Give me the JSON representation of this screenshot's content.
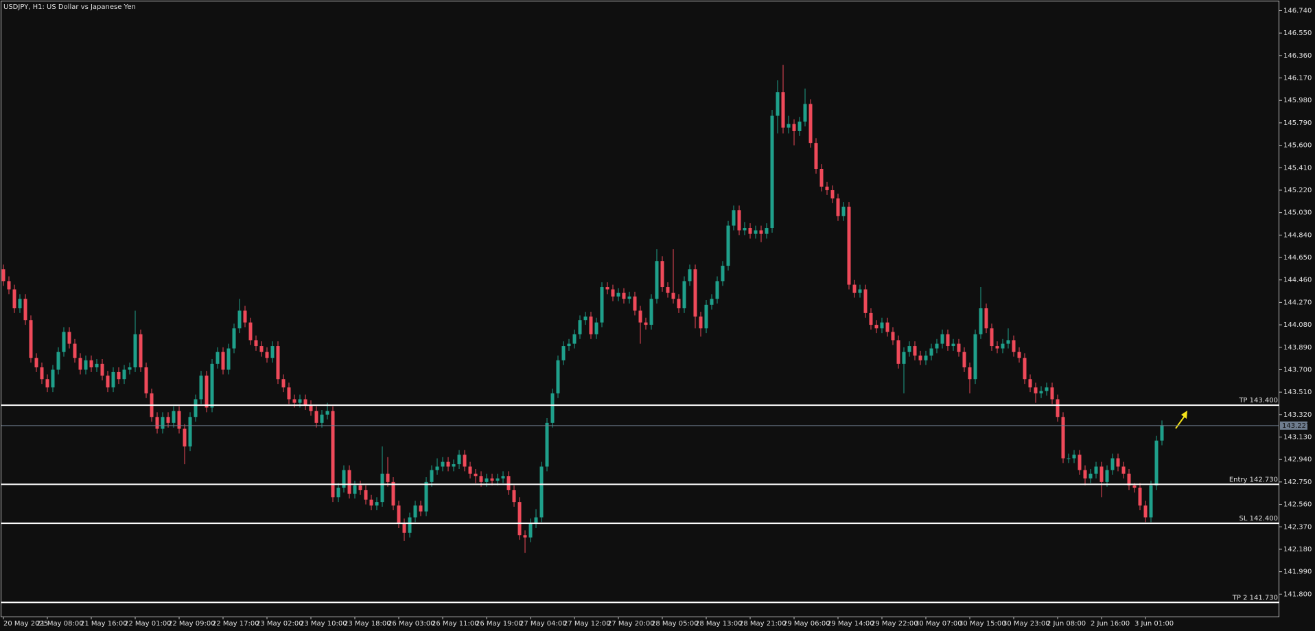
{
  "chart_data": {
    "type": "candlestick",
    "title": "USDJPY, H1:  US Dollar vs Japanese Yen",
    "up_color": "#1fa08b",
    "down_color": "#ef4a5a",
    "categories": [
      "20 May 2025",
      null,
      null,
      null,
      null,
      null,
      null,
      null,
      "21 May 08:00",
      null,
      null,
      null,
      null,
      null,
      null,
      null,
      "21 May 16:00",
      null,
      null,
      null,
      null,
      null,
      null,
      null,
      "22 May 01:00",
      null,
      null,
      null,
      null,
      null,
      null,
      null,
      "22 May 09:00",
      null,
      null,
      null,
      null,
      null,
      null,
      null,
      "22 May 17:00",
      null,
      null,
      null,
      null,
      null,
      null,
      null,
      "23 May 02:00",
      null,
      null,
      null,
      null,
      null,
      null,
      null,
      "23 May 10:00",
      null,
      null,
      null,
      null,
      null,
      null,
      null,
      "23 May 18:00",
      null,
      null,
      null,
      null,
      null,
      null,
      null,
      "26 May 03:00",
      null,
      null,
      null,
      null,
      null,
      null,
      null,
      "26 May 11:00",
      null,
      null,
      null,
      null,
      null,
      null,
      null,
      "26 May 19:00",
      null,
      null,
      null,
      null,
      null,
      null,
      null,
      "27 May 04:00",
      null,
      null,
      null,
      null,
      null,
      null,
      null,
      "27 May 12:00",
      null,
      null,
      null,
      null,
      null,
      null,
      null,
      "27 May 20:00",
      null,
      null,
      null,
      null,
      null,
      null,
      null,
      "28 May 05:00",
      null,
      null,
      null,
      null,
      null,
      null,
      null,
      "28 May 13:00",
      null,
      null,
      null,
      null,
      null,
      null,
      null,
      "28 May 21:00",
      null,
      null,
      null,
      null,
      null,
      null,
      null,
      "29 May 06:00",
      null,
      null,
      null,
      null,
      null,
      null,
      null,
      "29 May 14:00",
      null,
      null,
      null,
      null,
      null,
      null,
      null,
      "29 May 22:00",
      null,
      null,
      null,
      null,
      null,
      null,
      null,
      "30 May 07:00",
      null,
      null,
      null,
      null,
      null,
      null,
      null,
      "30 May 15:00",
      null,
      null,
      null,
      null,
      null,
      null,
      null,
      "30 May 23:00",
      null,
      null,
      null,
      null,
      null,
      null,
      null,
      "2 Jun 08:00",
      null,
      null,
      null,
      null,
      null,
      null,
      null,
      "2 Jun 16:00",
      null,
      null,
      null,
      null,
      null,
      null,
      null,
      "3 Jun 01:00",
      null,
      null,
      null
    ],
    "open": [
      144.55,
      144.45,
      144.38,
      144.22,
      144.3,
      144.12,
      143.8,
      143.72,
      143.62,
      143.55,
      143.7,
      143.85,
      144.02,
      143.92,
      143.8,
      143.7,
      143.78,
      143.72,
      143.75,
      143.65,
      143.55,
      143.68,
      143.62,
      143.7,
      143.72,
      144.0,
      143.72,
      143.5,
      143.3,
      143.2,
      143.3,
      143.25,
      143.35,
      143.2,
      143.05,
      143.3,
      143.45,
      143.65,
      143.38,
      143.75,
      143.85,
      143.7,
      143.88,
      144.05,
      144.2,
      144.1,
      143.95,
      143.9,
      143.85,
      143.8,
      143.9,
      143.62,
      143.55,
      143.45,
      143.42,
      143.45,
      143.4,
      143.35,
      143.25,
      143.32,
      143.35,
      142.62,
      142.7,
      142.85,
      142.65,
      142.72,
      142.68,
      142.6,
      142.55,
      142.58,
      142.82,
      142.75,
      142.55,
      142.4,
      142.32,
      142.45,
      142.55,
      142.5,
      142.75,
      142.85,
      142.88,
      142.92,
      142.88,
      142.9,
      142.98,
      142.88,
      142.82,
      142.8,
      142.75,
      142.78,
      142.76,
      142.78,
      142.8,
      142.68,
      142.58,
      142.3,
      142.28,
      142.4,
      142.45,
      142.88,
      143.25,
      143.5,
      143.78,
      143.9,
      143.92,
      144.0,
      144.12,
      144.15,
      144.0,
      144.1,
      144.4,
      144.38,
      144.32,
      144.35,
      144.3,
      144.32,
      144.2,
      144.1,
      144.08,
      144.3,
      144.62,
      144.4,
      144.35,
      144.3,
      144.22,
      144.45,
      144.55,
      144.15,
      144.05,
      144.25,
      144.3,
      144.45,
      144.58,
      144.92,
      145.05,
      144.88,
      144.9,
      144.85,
      144.88,
      144.85,
      144.9,
      145.85,
      146.05,
      145.75,
      145.78,
      145.72,
      145.8,
      145.95,
      145.62,
      145.4,
      145.25,
      145.22,
      145.15,
      145.0,
      145.08,
      144.42,
      144.35,
      144.38,
      144.18,
      144.08,
      144.05,
      144.1,
      144.02,
      143.95,
      143.75,
      143.85,
      143.9,
      143.82,
      143.78,
      143.82,
      143.88,
      143.92,
      144.0,
      143.9,
      143.92,
      143.85,
      143.72,
      143.62,
      144.0,
      144.22,
      144.05,
      143.9,
      143.88,
      143.92,
      143.95,
      143.85,
      143.8,
      143.62,
      143.55,
      143.5,
      143.52,
      143.55,
      143.45,
      143.3,
      142.95,
      142.95,
      142.98,
      142.85,
      142.78,
      142.82,
      142.88,
      142.75,
      142.85,
      142.95,
      142.88,
      142.82,
      142.72,
      142.7,
      142.55,
      142.45,
      142.72,
      143.1
    ],
    "high": [
      144.59,
      144.49,
      144.42,
      144.34,
      144.34,
      144.16,
      143.84,
      143.76,
      143.66,
      143.74,
      143.89,
      144.06,
      144.06,
      143.96,
      143.84,
      143.82,
      143.82,
      143.79,
      143.79,
      143.69,
      143.72,
      143.72,
      143.74,
      143.76,
      144.2,
      144.04,
      143.76,
      143.54,
      143.34,
      143.34,
      143.34,
      143.39,
      143.39,
      143.24,
      143.34,
      143.49,
      143.69,
      143.69,
      143.79,
      143.89,
      143.89,
      143.92,
      144.09,
      144.3,
      144.24,
      144.14,
      143.99,
      143.94,
      143.89,
      143.94,
      143.94,
      143.66,
      143.59,
      143.49,
      143.49,
      143.49,
      143.44,
      143.39,
      143.36,
      143.42,
      143.39,
      142.74,
      142.89,
      142.89,
      142.76,
      142.76,
      142.72,
      142.64,
      142.62,
      143.05,
      142.96,
      142.79,
      142.59,
      142.44,
      142.49,
      142.59,
      142.59,
      142.79,
      142.89,
      142.95,
      142.96,
      142.96,
      142.94,
      143.02,
      143.02,
      142.92,
      142.86,
      142.84,
      142.82,
      142.82,
      142.82,
      142.84,
      142.84,
      142.72,
      142.62,
      142.34,
      142.44,
      142.52,
      142.92,
      143.29,
      143.54,
      143.82,
      143.94,
      143.96,
      144.04,
      144.16,
      144.19,
      144.19,
      144.14,
      144.44,
      144.44,
      144.42,
      144.39,
      144.39,
      144.36,
      144.36,
      144.24,
      144.14,
      144.34,
      144.72,
      144.66,
      144.44,
      144.72,
      144.34,
      144.49,
      144.59,
      144.59,
      144.19,
      144.29,
      144.34,
      144.49,
      144.62,
      144.96,
      145.09,
      145.09,
      144.95,
      144.94,
      144.92,
      144.92,
      144.94,
      145.9,
      146.15,
      146.28,
      145.85,
      145.82,
      145.84,
      146.08,
      145.99,
      145.66,
      145.44,
      145.29,
      145.26,
      145.19,
      145.12,
      145.12,
      144.46,
      144.42,
      144.42,
      144.22,
      144.12,
      144.14,
      144.14,
      144.06,
      143.99,
      143.89,
      143.94,
      143.94,
      143.86,
      143.86,
      143.92,
      143.96,
      144.04,
      144.04,
      143.96,
      143.96,
      143.89,
      143.76,
      144.04,
      144.4,
      144.26,
      144.09,
      143.94,
      143.96,
      144.05,
      143.99,
      143.89,
      143.84,
      143.66,
      143.59,
      143.56,
      143.59,
      143.59,
      143.49,
      143.34,
      142.99,
      143.02,
      143.02,
      142.89,
      142.86,
      142.92,
      142.92,
      142.89,
      142.99,
      142.99,
      142.92,
      142.86,
      142.74,
      142.74,
      142.59,
      142.76,
      143.14,
      143.27
    ],
    "low": [
      144.41,
      144.34,
      144.18,
      144.18,
      144.08,
      143.76,
      143.68,
      143.58,
      143.51,
      143.51,
      143.66,
      143.81,
      143.88,
      143.76,
      143.66,
      143.66,
      143.68,
      143.68,
      143.61,
      143.51,
      143.51,
      143.58,
      143.58,
      143.66,
      143.68,
      143.68,
      143.46,
      143.26,
      143.16,
      143.16,
      143.21,
      143.21,
      143.16,
      142.9,
      143.01,
      143.26,
      143.41,
      143.34,
      143.34,
      143.71,
      143.66,
      143.66,
      143.84,
      144.01,
      144.06,
      143.91,
      143.86,
      143.81,
      143.76,
      143.76,
      143.58,
      143.51,
      143.41,
      143.38,
      143.38,
      143.36,
      143.31,
      143.21,
      143.21,
      143.28,
      142.58,
      142.58,
      142.66,
      142.61,
      142.61,
      142.64,
      142.56,
      142.51,
      142.51,
      142.54,
      142.71,
      142.51,
      142.36,
      142.25,
      142.28,
      142.41,
      142.46,
      142.46,
      142.71,
      142.81,
      142.84,
      142.84,
      142.84,
      142.86,
      142.84,
      142.78,
      142.74,
      142.71,
      142.71,
      142.72,
      142.72,
      142.74,
      142.64,
      142.54,
      142.26,
      142.15,
      142.24,
      142.36,
      142.41,
      142.84,
      143.21,
      143.46,
      143.74,
      143.86,
      143.88,
      143.96,
      144.08,
      143.96,
      143.96,
      144.06,
      144.34,
      144.28,
      144.28,
      144.26,
      144.26,
      144.16,
      143.92,
      144.04,
      144.04,
      144.26,
      144.36,
      144.31,
      144.26,
      144.18,
      144.18,
      144.41,
      144.05,
      143.98,
      144.01,
      144.21,
      144.26,
      144.41,
      144.54,
      144.88,
      144.84,
      144.84,
      144.81,
      144.81,
      144.78,
      144.81,
      144.86,
      145.7,
      145.7,
      145.7,
      145.6,
      145.68,
      145.76,
      145.58,
      145.36,
      145.21,
      145.18,
      145.11,
      144.96,
      144.96,
      144.38,
      144.31,
      144.31,
      144.14,
      144.04,
      144.01,
      144.01,
      143.98,
      143.91,
      143.71,
      143.5,
      143.81,
      143.78,
      143.74,
      143.74,
      143.78,
      143.84,
      143.88,
      143.86,
      143.86,
      143.81,
      143.68,
      143.5,
      143.58,
      143.96,
      144.01,
      143.86,
      143.84,
      143.84,
      143.88,
      143.81,
      143.76,
      143.58,
      143.51,
      143.42,
      143.46,
      143.48,
      143.41,
      143.26,
      142.91,
      142.91,
      142.91,
      142.81,
      142.72,
      142.74,
      142.78,
      142.62,
      142.71,
      142.81,
      142.84,
      142.78,
      142.68,
      142.66,
      142.51,
      142.41,
      142.41,
      142.68,
      143.06
    ],
    "close": [
      144.45,
      144.38,
      144.22,
      144.3,
      144.12,
      143.8,
      143.72,
      143.62,
      143.55,
      143.7,
      143.85,
      144.02,
      143.92,
      143.8,
      143.7,
      143.78,
      143.72,
      143.75,
      143.65,
      143.55,
      143.68,
      143.62,
      143.7,
      143.72,
      144.0,
      143.72,
      143.5,
      143.3,
      143.2,
      143.3,
      143.25,
      143.35,
      143.2,
      143.05,
      143.3,
      143.45,
      143.65,
      143.38,
      143.75,
      143.85,
      143.7,
      143.88,
      144.05,
      144.2,
      144.1,
      143.95,
      143.9,
      143.85,
      143.8,
      143.9,
      143.62,
      143.55,
      143.45,
      143.42,
      143.45,
      143.4,
      143.35,
      143.25,
      143.32,
      143.35,
      142.62,
      142.7,
      142.85,
      142.65,
      142.72,
      142.68,
      142.6,
      142.55,
      142.58,
      142.82,
      142.75,
      142.55,
      142.4,
      142.32,
      142.45,
      142.55,
      142.5,
      142.75,
      142.85,
      142.88,
      142.92,
      142.88,
      142.9,
      142.98,
      142.88,
      142.82,
      142.8,
      142.75,
      142.78,
      142.76,
      142.78,
      142.8,
      142.68,
      142.58,
      142.3,
      142.28,
      142.4,
      142.45,
      142.88,
      143.25,
      143.5,
      143.78,
      143.9,
      143.92,
      144.0,
      144.12,
      144.15,
      144.0,
      144.1,
      144.4,
      144.38,
      144.32,
      144.35,
      144.3,
      144.32,
      144.2,
      144.1,
      144.08,
      144.3,
      144.62,
      144.4,
      144.35,
      144.3,
      144.22,
      144.45,
      144.55,
      144.15,
      144.05,
      144.25,
      144.3,
      144.45,
      144.58,
      144.92,
      145.05,
      144.88,
      144.9,
      144.85,
      144.88,
      144.85,
      144.9,
      145.85,
      146.05,
      145.75,
      145.78,
      145.72,
      145.8,
      145.95,
      145.62,
      145.4,
      145.25,
      145.22,
      145.15,
      145.0,
      145.08,
      144.42,
      144.35,
      144.38,
      144.18,
      144.08,
      144.05,
      144.1,
      144.02,
      143.95,
      143.75,
      143.85,
      143.9,
      143.82,
      143.78,
      143.82,
      143.88,
      143.92,
      144.0,
      143.9,
      143.92,
      143.85,
      143.72,
      143.62,
      144.0,
      144.22,
      144.05,
      143.9,
      143.88,
      143.92,
      143.95,
      143.85,
      143.8,
      143.62,
      143.55,
      143.5,
      143.52,
      143.55,
      143.45,
      143.3,
      142.95,
      142.95,
      142.98,
      142.85,
      142.78,
      142.82,
      142.88,
      142.75,
      142.85,
      142.95,
      142.88,
      142.82,
      142.72,
      142.7,
      142.55,
      142.45,
      142.72,
      143.1,
      143.23
    ],
    "ylim": [
      141.61,
      146.83
    ],
    "yticks": [
      {
        "value": 146.74,
        "label": "146.740"
      },
      {
        "value": 146.55,
        "label": "146.550"
      },
      {
        "value": 146.36,
        "label": "146.360"
      },
      {
        "value": 146.17,
        "label": "146.170"
      },
      {
        "value": 145.98,
        "label": "145.980"
      },
      {
        "value": 145.79,
        "label": "145.790"
      },
      {
        "value": 145.6,
        "label": "145.600"
      },
      {
        "value": 145.41,
        "label": "145.410"
      },
      {
        "value": 145.22,
        "label": "145.220"
      },
      {
        "value": 145.03,
        "label": "145.030"
      },
      {
        "value": 144.84,
        "label": "144.840"
      },
      {
        "value": 144.65,
        "label": "144.650"
      },
      {
        "value": 144.46,
        "label": "144.460"
      },
      {
        "value": 144.27,
        "label": "144.270"
      },
      {
        "value": 144.08,
        "label": "144.080"
      },
      {
        "value": 143.89,
        "label": "143.890"
      },
      {
        "value": 143.7,
        "label": "143.700"
      },
      {
        "value": 143.51,
        "label": "143.510"
      },
      {
        "value": 143.32,
        "label": "143.320"
      },
      {
        "value": 143.13,
        "label": "143.130"
      },
      {
        "value": 142.94,
        "label": "142.940"
      },
      {
        "value": 142.75,
        "label": "142.750"
      },
      {
        "value": 142.56,
        "label": "142.560"
      },
      {
        "value": 142.37,
        "label": "142.370"
      },
      {
        "value": 142.18,
        "label": "142.180"
      },
      {
        "value": 141.99,
        "label": "141.990"
      },
      {
        "value": 141.8,
        "label": "141.800"
      }
    ],
    "levels": [
      {
        "label": "TP 143.400",
        "value": 143.4
      },
      {
        "label": "Entry 142.730",
        "value": 142.73
      },
      {
        "label": "SL 142.400",
        "value": 142.4
      },
      {
        "label": "TP 2 141.730",
        "value": 141.73
      }
    ],
    "current_price": 143.227
  }
}
